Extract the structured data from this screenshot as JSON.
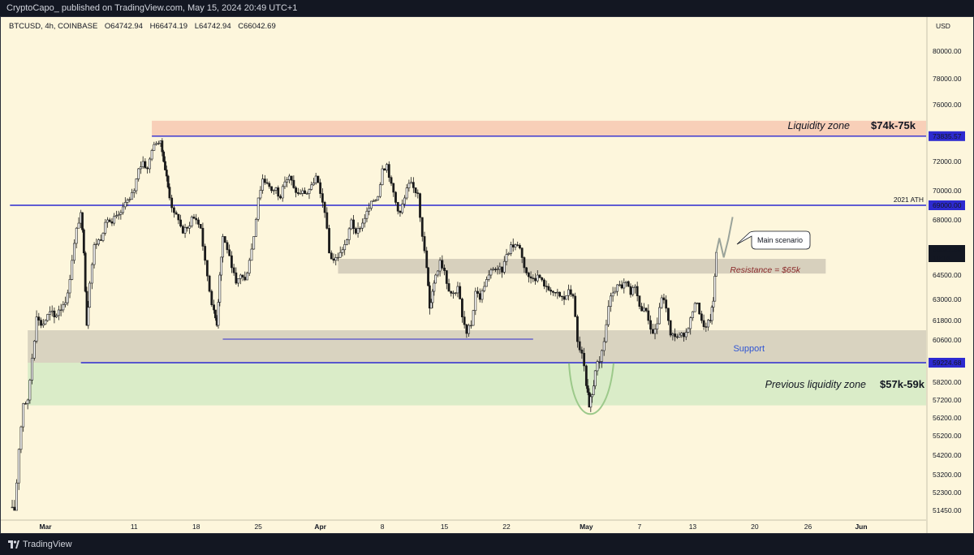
{
  "header": {
    "publisher_line": "CryptoCapo_ published on TradingView.com, May 15, 2024 20:49 UTC+1"
  },
  "symbol_info": {
    "name": "BTCUSD, 4h, COINBASE",
    "open": "O64742.94",
    "high": "H66474.19",
    "low": "L64742.94",
    "close": "C66042.69"
  },
  "footer": {
    "brand": "TradingView"
  },
  "chart_data": {
    "type": "candlestick",
    "symbol": "BTCUSD",
    "interval": "4h",
    "exchange": "COINBASE",
    "currency": "USD",
    "price_axis_ticks": [
      80000,
      78000,
      76000,
      74000,
      72000,
      70000,
      68000,
      66042.69,
      64500,
      63000,
      61800,
      60600,
      59224.68,
      58200,
      57200,
      56200,
      55200,
      54200,
      53200,
      52300,
      51450
    ],
    "price_axis_labels": [
      "80000.00",
      "78000.00",
      "76000.00",
      "74000.00",
      "72000.00",
      "70000.00",
      "68000.00",
      "64500.00",
      "63000.00",
      "61800.00",
      "60600.00",
      "58200.00",
      "57200.00",
      "56200.00",
      "55200.00",
      "54200.00",
      "53200.00",
      "52300.00",
      "51450.00"
    ],
    "time_axis_labels": [
      "Mar",
      "11",
      "18",
      "25",
      "Apr",
      "8",
      "15",
      "22",
      "May",
      "7",
      "13",
      "20",
      "26",
      "Jun"
    ],
    "bold_time_labels": [
      "Mar",
      "Apr",
      "May",
      "Jun"
    ],
    "time_axis_dates": [
      "2024-03-01",
      "2024-03-11",
      "2024-03-18",
      "2024-03-25",
      "2024-04-01",
      "2024-04-08",
      "2024-04-15",
      "2024-04-22",
      "2024-05-01",
      "2024-05-07",
      "2024-05-13",
      "2024-05-20",
      "2024-05-26",
      "2024-06-01"
    ],
    "last_price": {
      "value": "66042.69",
      "countdown": "10:14"
    },
    "price_lines": [
      {
        "label": "73835.57",
        "value": 73835.57,
        "color": "#2d2ad0",
        "start": "2024-03-13"
      },
      {
        "label": "69000.00",
        "value": 69000.0,
        "color": "#2d2ad0",
        "start": "2024-02-26",
        "note": "2021 ATH"
      },
      {
        "label": "59224.68",
        "value": 59224.68,
        "color": "#2d2ad0",
        "start": "2024-03-05"
      }
    ],
    "zones": [
      {
        "name": "Liquidity zone",
        "range_label": "$74k-75k",
        "low": 73835.57,
        "high": 74900,
        "color": "#f8cfb8",
        "start": "2024-03-13"
      },
      {
        "name": "Resistance = $65k",
        "low": 64600,
        "high": 65600,
        "color": "#d7d0bd",
        "start": "2024-04-03",
        "end": "2024-05-28"
      },
      {
        "name": "Support",
        "low": 59224.68,
        "high": 61200,
        "color": "#d9d3c0",
        "start": "2024-02-28"
      },
      {
        "name": "Previous liquidity zone",
        "range_label": "$57k-59k",
        "low": 56900,
        "high": 59224.68,
        "color": "#daecc8",
        "start": "2024-02-28"
      }
    ],
    "support_line": {
      "value": 60650,
      "start": "2024-03-21",
      "end": "2024-04-25"
    },
    "callout": "Main scenario",
    "price_path": [
      [
        "2024-02-26 00:00",
        51600
      ],
      [
        "2024-02-26 12:00",
        51200
      ],
      [
        "2024-02-27 00:00",
        54500
      ],
      [
        "2024-02-27 12:00",
        57000
      ],
      [
        "2024-02-28 00:00",
        57200
      ],
      [
        "2024-02-28 12:00",
        59500
      ],
      [
        "2024-02-29 00:00",
        62000
      ],
      [
        "2024-02-29 12:00",
        61500
      ],
      [
        "2024-03-01 00:00",
        61800
      ],
      [
        "2024-03-01 12:00",
        62300
      ],
      [
        "2024-03-02 00:00",
        62000
      ],
      [
        "2024-03-02 12:00",
        62400
      ],
      [
        "2024-03-03 00:00",
        62700
      ],
      [
        "2024-03-03 12:00",
        63400
      ],
      [
        "2024-03-04 00:00",
        65500
      ],
      [
        "2024-03-04 12:00",
        67500
      ],
      [
        "2024-03-05 00:00",
        68500
      ],
      [
        "2024-03-05 08:00",
        66000
      ],
      [
        "2024-03-05 16:00",
        61500
      ],
      [
        "2024-03-06 00:00",
        64000
      ],
      [
        "2024-03-06 12:00",
        66500
      ],
      [
        "2024-03-07 00:00",
        66800
      ],
      [
        "2024-03-07 12:00",
        67200
      ],
      [
        "2024-03-08 00:00",
        68000
      ],
      [
        "2024-03-08 12:00",
        67800
      ],
      [
        "2024-03-09 00:00",
        68300
      ],
      [
        "2024-03-09 12:00",
        68500
      ],
      [
        "2024-03-10 00:00",
        69200
      ],
      [
        "2024-03-10 12:00",
        69400
      ],
      [
        "2024-03-11 00:00",
        70000
      ],
      [
        "2024-03-11 12:00",
        71500
      ],
      [
        "2024-03-12 00:00",
        72000
      ],
      [
        "2024-03-12 12:00",
        71500
      ],
      [
        "2024-03-13 00:00",
        72800
      ],
      [
        "2024-03-13 12:00",
        73300
      ],
      [
        "2024-03-14 00:00",
        73500
      ],
      [
        "2024-03-14 08:00",
        72000
      ],
      [
        "2024-03-14 16:00",
        71000
      ],
      [
        "2024-03-15 00:00",
        69500
      ],
      [
        "2024-03-15 12:00",
        68500
      ],
      [
        "2024-03-16 00:00",
        68000
      ],
      [
        "2024-03-16 12:00",
        67200
      ],
      [
        "2024-03-17 00:00",
        67500
      ],
      [
        "2024-03-17 12:00",
        68200
      ],
      [
        "2024-03-18 00:00",
        68000
      ],
      [
        "2024-03-18 12:00",
        67500
      ],
      [
        "2024-03-19 00:00",
        65500
      ],
      [
        "2024-03-19 12:00",
        63500
      ],
      [
        "2024-03-20 00:00",
        62400
      ],
      [
        "2024-03-20 08:00",
        61500
      ],
      [
        "2024-03-20 16:00",
        64500
      ],
      [
        "2024-03-21 00:00",
        67000
      ],
      [
        "2024-03-21 12:00",
        66200
      ],
      [
        "2024-03-22 00:00",
        65000
      ],
      [
        "2024-03-22 12:00",
        64000
      ],
      [
        "2024-03-23 00:00",
        64500
      ],
      [
        "2024-03-23 12:00",
        64200
      ],
      [
        "2024-03-24 00:00",
        65500
      ],
      [
        "2024-03-24 12:00",
        67000
      ],
      [
        "2024-03-25 00:00",
        69500
      ],
      [
        "2024-03-25 12:00",
        70800
      ],
      [
        "2024-03-26 00:00",
        70500
      ],
      [
        "2024-03-26 12:00",
        70000
      ],
      [
        "2024-03-27 00:00",
        70200
      ],
      [
        "2024-03-27 12:00",
        69500
      ],
      [
        "2024-03-28 00:00",
        70600
      ],
      [
        "2024-03-28 12:00",
        71000
      ],
      [
        "2024-03-29 00:00",
        70200
      ],
      [
        "2024-03-29 12:00",
        69800
      ],
      [
        "2024-03-30 00:00",
        70000
      ],
      [
        "2024-03-30 12:00",
        69800
      ],
      [
        "2024-03-31 00:00",
        70400
      ],
      [
        "2024-03-31 12:00",
        71000
      ],
      [
        "2024-04-01 00:00",
        69800
      ],
      [
        "2024-04-01 12:00",
        68500
      ],
      [
        "2024-04-02 00:00",
        66000
      ],
      [
        "2024-04-02 12:00",
        65500
      ],
      [
        "2024-04-03 00:00",
        65700
      ],
      [
        "2024-04-03 12:00",
        66200
      ],
      [
        "2024-04-04 00:00",
        66800
      ],
      [
        "2024-04-04 12:00",
        68000
      ],
      [
        "2024-04-05 00:00",
        67200
      ],
      [
        "2024-04-05 12:00",
        67500
      ],
      [
        "2024-04-06 00:00",
        68100
      ],
      [
        "2024-04-06 12:00",
        68800
      ],
      [
        "2024-04-07 00:00",
        69300
      ],
      [
        "2024-04-07 12:00",
        69600
      ],
      [
        "2024-04-08 00:00",
        71500
      ],
      [
        "2024-04-08 12:00",
        71800
      ],
      [
        "2024-04-09 00:00",
        70500
      ],
      [
        "2024-04-09 12:00",
        69200
      ],
      [
        "2024-04-10 00:00",
        68500
      ],
      [
        "2024-04-10 12:00",
        69500
      ],
      [
        "2024-04-11 00:00",
        70500
      ],
      [
        "2024-04-11 12:00",
        70200
      ],
      [
        "2024-04-12 00:00",
        69800
      ],
      [
        "2024-04-12 12:00",
        67000
      ],
      [
        "2024-04-13 00:00",
        65000
      ],
      [
        "2024-04-13 08:00",
        62500
      ],
      [
        "2024-04-13 16:00",
        63500
      ],
      [
        "2024-04-14 00:00",
        64500
      ],
      [
        "2024-04-14 12:00",
        65500
      ],
      [
        "2024-04-15 00:00",
        64800
      ],
      [
        "2024-04-15 12:00",
        63500
      ],
      [
        "2024-04-16 00:00",
        63400
      ],
      [
        "2024-04-16 12:00",
        63800
      ],
      [
        "2024-04-17 00:00",
        62000
      ],
      [
        "2024-04-17 12:00",
        61000
      ],
      [
        "2024-04-18 00:00",
        61500
      ],
      [
        "2024-04-18 12:00",
        63500
      ],
      [
        "2024-04-19 00:00",
        63000
      ],
      [
        "2024-04-19 12:00",
        63800
      ],
      [
        "2024-04-20 00:00",
        64500
      ],
      [
        "2024-04-20 12:00",
        64900
      ],
      [
        "2024-04-21 00:00",
        64900
      ],
      [
        "2024-04-21 12:00",
        64700
      ],
      [
        "2024-04-22 00:00",
        65900
      ],
      [
        "2024-04-22 12:00",
        66500
      ],
      [
        "2024-04-23 00:00",
        66500
      ],
      [
        "2024-04-23 12:00",
        66300
      ],
      [
        "2024-04-24 00:00",
        65000
      ],
      [
        "2024-04-24 12:00",
        64400
      ],
      [
        "2024-04-25 00:00",
        64300
      ],
      [
        "2024-04-25 12:00",
        64500
      ],
      [
        "2024-04-26 00:00",
        64200
      ],
      [
        "2024-04-26 12:00",
        63800
      ],
      [
        "2024-04-27 00:00",
        63500
      ],
      [
        "2024-04-27 12:00",
        63400
      ],
      [
        "2024-04-28 00:00",
        63200
      ],
      [
        "2024-04-28 12:00",
        63000
      ],
      [
        "2024-04-29 00:00",
        63600
      ],
      [
        "2024-04-29 12:00",
        63200
      ],
      [
        "2024-04-30 00:00",
        60500
      ],
      [
        "2024-04-30 12:00",
        59800
      ],
      [
        "2024-05-01 00:00",
        58000
      ],
      [
        "2024-05-01 08:00",
        56800
      ],
      [
        "2024-05-01 16:00",
        57500
      ],
      [
        "2024-05-02 00:00",
        58800
      ],
      [
        "2024-05-02 12:00",
        59300
      ],
      [
        "2024-05-03 00:00",
        60500
      ],
      [
        "2024-05-03 12:00",
        62600
      ],
      [
        "2024-05-04 00:00",
        63400
      ],
      [
        "2024-05-04 12:00",
        63900
      ],
      [
        "2024-05-05 00:00",
        63700
      ],
      [
        "2024-05-05 12:00",
        64100
      ],
      [
        "2024-05-06 00:00",
        63300
      ],
      [
        "2024-05-06 12:00",
        63800
      ],
      [
        "2024-05-07 00:00",
        62600
      ],
      [
        "2024-05-07 12:00",
        62500
      ],
      [
        "2024-05-08 00:00",
        61800
      ],
      [
        "2024-05-08 12:00",
        61000
      ],
      [
        "2024-05-09 00:00",
        61600
      ],
      [
        "2024-05-09 12:00",
        63100
      ],
      [
        "2024-05-10 00:00",
        62500
      ],
      [
        "2024-05-10 12:00",
        60900
      ],
      [
        "2024-05-11 00:00",
        60800
      ],
      [
        "2024-05-11 12:00",
        60900
      ],
      [
        "2024-05-12 00:00",
        60800
      ],
      [
        "2024-05-12 12:00",
        61300
      ],
      [
        "2024-05-13 00:00",
        62300
      ],
      [
        "2024-05-13 12:00",
        62800
      ],
      [
        "2024-05-14 00:00",
        61800
      ],
      [
        "2024-05-14 12:00",
        61400
      ],
      [
        "2024-05-15 00:00",
        61800
      ],
      [
        "2024-05-15 08:00",
        62900
      ],
      [
        "2024-05-15 16:00",
        66042.69
      ]
    ],
    "projection_path": [
      [
        "2024-05-15 16:00",
        66042.69
      ],
      [
        "2024-05-16 00:00",
        66900
      ],
      [
        "2024-05-16 12:00",
        65700
      ],
      [
        "2024-05-17 00:00",
        66800
      ],
      [
        "2024-05-17 12:00",
        68200
      ]
    ]
  },
  "annotations": {
    "liquidity_zone_label": "Liquidity zone",
    "liquidity_zone_range": "$74k-75k",
    "ath_label": "2021 ATH",
    "callout": "Main scenario",
    "resistance_label": "Resistance = $65k",
    "support_label": "Support",
    "prev_liquidity_label": "Previous liquidity zone",
    "prev_liquidity_range": "$57k-59k"
  },
  "colors": {
    "chart_bg": "#fdf6dc",
    "frame_bg": "#131722",
    "level_line": "#2d2ad0",
    "liquidity_zone": "#f8cfb8",
    "gray_zone": "#d8d1bd",
    "green_zone": "#daecc8",
    "candle": "#1a1a1a",
    "support_text": "#2f55d4",
    "resistance_text": "#8b2a2a",
    "projection": "#9aa39a",
    "u_curve": "#9cc98a"
  }
}
